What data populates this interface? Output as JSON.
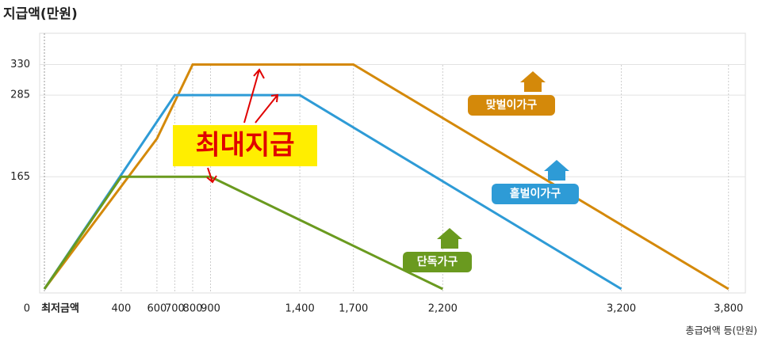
{
  "chart_data": {
    "type": "line",
    "title": "지급액(만원)",
    "x_label": "총급여액 등(만원)",
    "annotation": "최대지급",
    "xlim": [
      -30,
      3890
    ],
    "ylim": [
      0,
      376
    ],
    "xticks": [
      {
        "value": -30,
        "label": "최저금액"
      },
      400,
      600,
      700,
      800,
      900,
      {
        "value": 1400,
        "label": "1,400"
      },
      {
        "value": 1700,
        "label": "1,700"
      },
      {
        "value": 2200,
        "label": "2,200"
      },
      {
        "value": 3200,
        "label": "3,200"
      },
      {
        "value": 3800,
        "label": "3,800"
      }
    ],
    "yticks": [
      0,
      165,
      285,
      330
    ],
    "grid": true,
    "series": [
      {
        "name": "맞벌이가구",
        "color": "#d4890a",
        "x": [
          -30,
          600,
          800,
          1700,
          3800
        ],
        "values": [
          0,
          221,
          330,
          330,
          0
        ]
      },
      {
        "name": "홑벌이가구",
        "color": "#2e9bd6",
        "x": [
          -30,
          700,
          1400,
          3200
        ],
        "values": [
          0,
          285,
          285,
          0
        ]
      },
      {
        "name": "단독가구",
        "color": "#6a9a1f",
        "x": [
          -30,
          400,
          900,
          2200
        ],
        "values": [
          0,
          165,
          165,
          0
        ]
      }
    ]
  }
}
